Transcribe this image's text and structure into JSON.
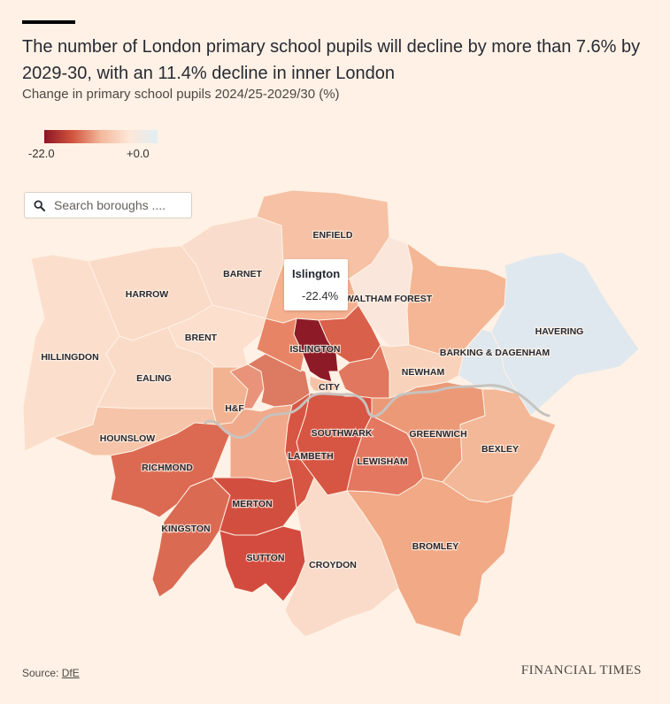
{
  "header": {
    "title": "The number of London primary school pupils will decline by more than 7.6% by 2029-30, with an 11.4% decline in inner London",
    "subtitle": "Change in primary school pupils 2024/25-2029/30 (%)"
  },
  "legend": {
    "min_label": "-22.0",
    "max_label": "+0.0",
    "min": -22.0,
    "max": 0.0
  },
  "search": {
    "placeholder": "Search boroughs ...."
  },
  "tooltip": {
    "name": "Islington",
    "value": "-22.4%"
  },
  "colors": {
    "background": "#fff1e5",
    "highlight_outline": "#000000",
    "river": "#c7c3be"
  },
  "map_labels": {
    "enfield": "ENFIELD",
    "barnet": "BARNET",
    "harrow": "HARROW",
    "brent": "BRENT",
    "hillingdon": "HILLINGDON",
    "ealing": "EALING",
    "islington": "ISLINGTON",
    "waltham_forest": "WALTHAM FOREST",
    "havering": "HAVERING",
    "barking_dagenham": "BARKING & DAGENHAM",
    "newham": "NEWHAM",
    "city": "CITY",
    "hf": "H&F",
    "hounslow": "HOUNSLOW",
    "southwark": "SOUTHWARK",
    "greenwich": "GREENWICH",
    "bexley": "BEXLEY",
    "richmond": "RICHMOND",
    "lambeth": "LAMBETH",
    "lewisham": "LEWISHAM",
    "merton": "MERTON",
    "kingston": "KINGSTON",
    "sutton": "SUTTON",
    "croydon": "CROYDON",
    "bromley": "BROMLEY"
  },
  "footer": {
    "source_label": "Source:",
    "source_link": "DfE",
    "brand": "FINANCIAL TIMES"
  }
}
